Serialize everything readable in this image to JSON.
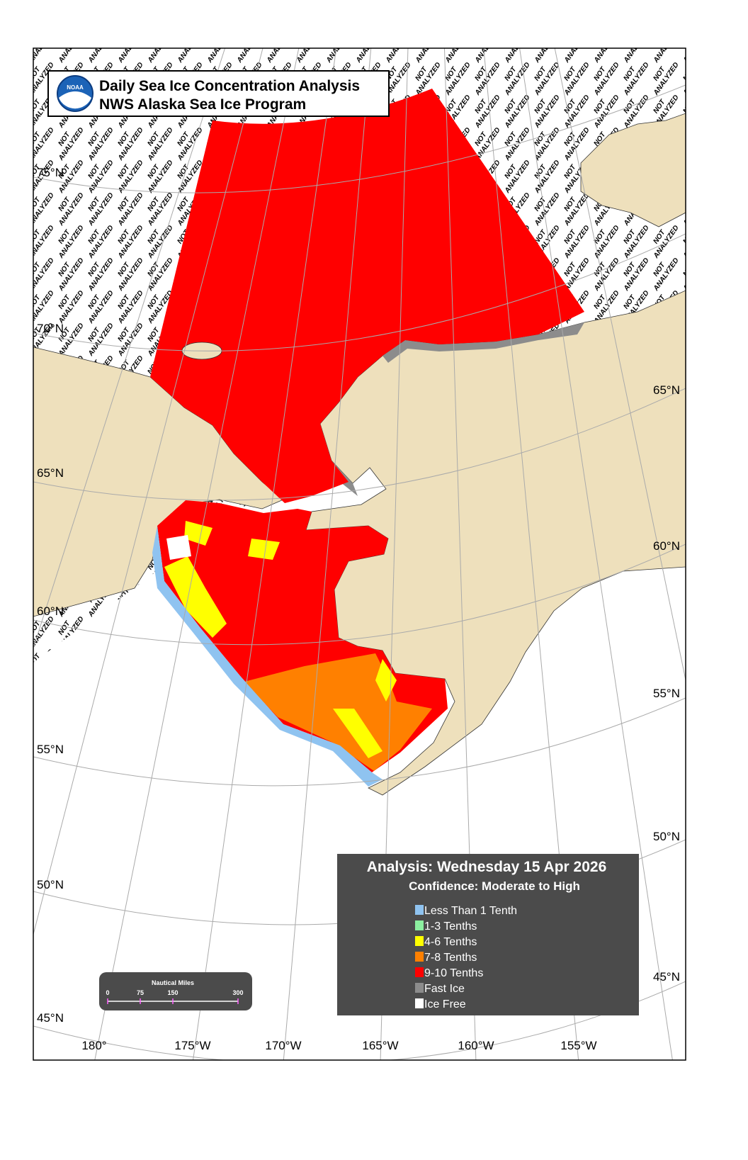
{
  "header": {
    "title": "Daily Sea Ice Concentration Analysis",
    "subtitle": "NWS Alaska Sea Ice Program",
    "logo": "NOAA"
  },
  "hatch": {
    "word1": "NOT",
    "word2": "ANALYZED"
  },
  "graticule": {
    "left": [
      "75°N",
      "70°N",
      "65°N",
      "60°N",
      "55°N",
      "50°N",
      "45°N"
    ],
    "right": [
      "65°N",
      "60°N",
      "55°N",
      "50°N",
      "45°N"
    ],
    "bottom": [
      "180°",
      "175°W",
      "170°W",
      "165°W",
      "160°W",
      "155°W"
    ]
  },
  "legend": {
    "analysis": "Analysis: Wednesday 15 Apr 2026",
    "confidence": "Confidence: Moderate to High",
    "items": [
      {
        "label": "Less Than 1 Tenth",
        "color": "#8fc3f0"
      },
      {
        "label": "1-3 Tenths",
        "color": "#8cf0a0"
      },
      {
        "label": "4-6 Tenths",
        "color": "#ffff00"
      },
      {
        "label": "7-8 Tenths",
        "color": "#ff8000"
      },
      {
        "label": "9-10 Tenths",
        "color": "#ff0000"
      },
      {
        "label": "Fast Ice",
        "color": "#8c8c8c"
      },
      {
        "label": "Ice Free",
        "color": "#ffffff"
      }
    ]
  },
  "scale": {
    "title": "Nautical Miles",
    "ticks": [
      0,
      75,
      150,
      300
    ]
  }
}
